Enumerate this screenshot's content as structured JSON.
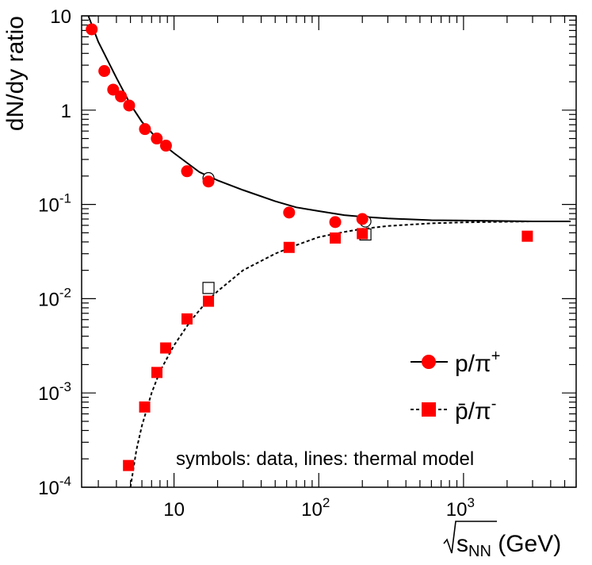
{
  "chart_data": {
    "type": "scatter",
    "title": "",
    "xlabel": {
      "prefix": "s",
      "subscript": "NN",
      "suffix": " (GeV)"
    },
    "ylabel": "dN/dy ratio",
    "xscale": "log",
    "yscale": "log",
    "xlim": [
      2.3,
      6000
    ],
    "ylim": [
      0.0001,
      10
    ],
    "x_ticks": [
      {
        "value": 10,
        "base": "10",
        "exp": ""
      },
      {
        "value": 100,
        "base": "10",
        "exp": "2"
      },
      {
        "value": 1000,
        "base": "10",
        "exp": "3"
      }
    ],
    "y_ticks": [
      {
        "value": 10,
        "base": "10",
        "exp": ""
      },
      {
        "value": 1,
        "base": "1",
        "exp": ""
      },
      {
        "value": 0.1,
        "base": "10",
        "exp": "-1"
      },
      {
        "value": 0.01,
        "base": "10",
        "exp": "-2"
      },
      {
        "value": 0.001,
        "base": "10",
        "exp": "-3"
      },
      {
        "value": 0.0001,
        "base": "10",
        "exp": "-4"
      }
    ],
    "series": [
      {
        "name": "p/π+",
        "legend_main": "p/π",
        "legend_sup": "+",
        "marker": "circle",
        "color": "#ff0000",
        "points": [
          [
            2.7,
            7.2
          ],
          [
            3.3,
            2.6
          ],
          [
            3.8,
            1.65
          ],
          [
            4.3,
            1.4
          ],
          [
            4.9,
            1.12
          ],
          [
            6.3,
            0.63
          ],
          [
            7.6,
            0.5
          ],
          [
            8.8,
            0.42
          ],
          [
            12.3,
            0.225
          ],
          [
            17.3,
            0.175
          ],
          [
            62.4,
            0.082
          ],
          [
            130,
            0.065
          ],
          [
            200,
            0.07
          ]
        ],
        "open_points": [
          [
            17.3,
            0.19
          ],
          [
            210,
            0.066
          ]
        ]
      },
      {
        "name": "p̄/π-",
        "legend_main": "p̄/π",
        "legend_sup": "-",
        "marker": "square",
        "color": "#ff0000",
        "points": [
          [
            4.85,
            0.00017
          ],
          [
            6.27,
            0.00071
          ],
          [
            7.62,
            0.00165
          ],
          [
            8.76,
            0.003
          ],
          [
            12.3,
            0.0061
          ],
          [
            17.3,
            0.0094
          ],
          [
            62.4,
            0.035
          ],
          [
            130,
            0.044
          ],
          [
            200,
            0.049
          ],
          [
            2760,
            0.046
          ]
        ],
        "open_points": [
          [
            17.3,
            0.013
          ],
          [
            210,
            0.048
          ]
        ]
      }
    ],
    "lines": [
      {
        "name": "p/π+ thermal",
        "style": "solid",
        "points": [
          [
            2.5,
            11
          ],
          [
            3,
            5.3
          ],
          [
            4,
            2.2
          ],
          [
            5,
            1.15
          ],
          [
            6,
            0.75
          ],
          [
            8,
            0.46
          ],
          [
            10,
            0.35
          ],
          [
            15,
            0.22
          ],
          [
            20,
            0.18
          ],
          [
            30,
            0.142
          ],
          [
            50,
            0.108
          ],
          [
            70,
            0.093
          ],
          [
            100,
            0.085
          ],
          [
            150,
            0.077
          ],
          [
            200,
            0.074
          ],
          [
            300,
            0.071
          ],
          [
            600,
            0.068
          ],
          [
            1000,
            0.0675
          ],
          [
            3000,
            0.066
          ],
          [
            5500,
            0.066
          ]
        ]
      },
      {
        "name": "p̄/π- thermal",
        "style": "dashed",
        "points": [
          [
            5,
            0.0001
          ],
          [
            5.5,
            0.00025
          ],
          [
            6,
            0.00045
          ],
          [
            7,
            0.001
          ],
          [
            8,
            0.0017
          ],
          [
            10,
            0.0032
          ],
          [
            13,
            0.0058
          ],
          [
            17,
            0.0095
          ],
          [
            20,
            0.012
          ],
          [
            30,
            0.02
          ],
          [
            50,
            0.03
          ],
          [
            70,
            0.037
          ],
          [
            100,
            0.045
          ],
          [
            150,
            0.051
          ],
          [
            200,
            0.055
          ],
          [
            300,
            0.059
          ],
          [
            600,
            0.063
          ],
          [
            1000,
            0.0645
          ],
          [
            3000,
            0.066
          ],
          [
            5500,
            0.066
          ]
        ]
      }
    ],
    "annotation": "symbols: data, lines: thermal model",
    "legend_position": "right"
  }
}
